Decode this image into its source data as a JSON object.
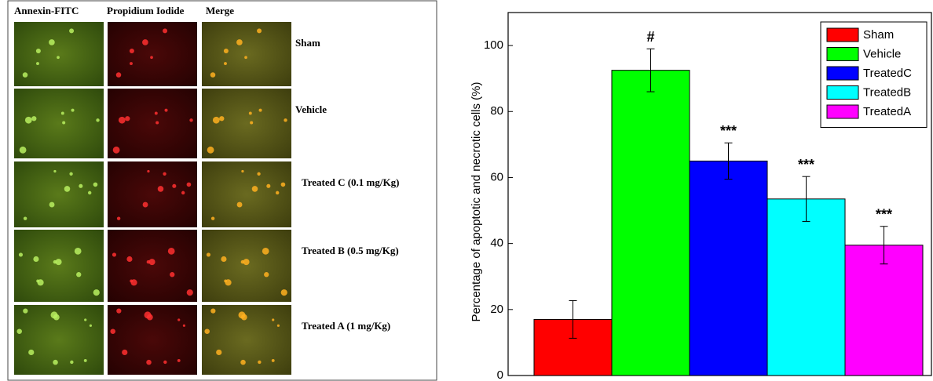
{
  "micrographs": {
    "columns": [
      "Annexin-FITC",
      "Propidium Iodide",
      "Merge"
    ],
    "rows": [
      "Sham",
      "Vehicle",
      "Treated C (0.1 mg/Kg)",
      "Treated B (0.5 mg/Kg)",
      "Treated A (1 mg/Kg)"
    ]
  },
  "chart_data": {
    "type": "bar",
    "y_label": "Percentage of apoptotic and necrotic cells (%)",
    "categories": [
      "Sham",
      "Vehicle",
      "TreatedC",
      "TreatedB",
      "TreatedA"
    ],
    "colors": [
      "#ff0000",
      "#00ff00",
      "#0000ff",
      "#00ffff",
      "#ff00ff"
    ],
    "values": [
      17,
      92.5,
      65,
      53.5,
      39.5
    ],
    "errors": [
      5.7,
      6.5,
      5.5,
      6.8,
      5.7
    ],
    "annotations": [
      null,
      "#",
      "***",
      "***",
      "***"
    ],
    "ylim": [
      0,
      110
    ],
    "yticks": [
      0,
      20,
      40,
      60,
      80,
      100
    ],
    "legend": "upper right"
  }
}
